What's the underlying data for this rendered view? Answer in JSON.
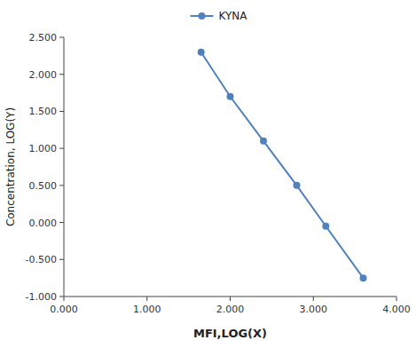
{
  "chart_data": {
    "type": "line",
    "xlabel": "MFI,LOG(X)",
    "ylabel": "Concentration, LOG(Y)",
    "x": [
      1.65,
      2.0,
      2.4,
      2.8,
      3.15,
      3.6
    ],
    "series": [
      {
        "name": "KYNA",
        "color": "#4f81bd",
        "marker": "circle",
        "line_style": "solid",
        "values": [
          2.3,
          1.7,
          1.1,
          0.5,
          -0.05,
          -0.75
        ]
      }
    ],
    "xlim": [
      0.0,
      4.0
    ],
    "ylim": [
      -1.0,
      2.5
    ],
    "xticks": [
      {
        "value": 0.0,
        "label": "0.000"
      },
      {
        "value": 1.0,
        "label": "1.000"
      },
      {
        "value": 2.0,
        "label": "2.000"
      },
      {
        "value": 3.0,
        "label": "3.000"
      },
      {
        "value": 4.0,
        "label": "4.000"
      }
    ],
    "yticks": [
      {
        "value": -1.0,
        "label": "-1.000"
      },
      {
        "value": -0.5,
        "label": "-0.500"
      },
      {
        "value": 0.0,
        "label": "0.000"
      },
      {
        "value": 0.5,
        "label": "0.500"
      },
      {
        "value": 1.0,
        "label": "1.000"
      },
      {
        "value": 1.5,
        "label": "1.500"
      },
      {
        "value": 2.0,
        "label": "2.000"
      },
      {
        "value": 2.5,
        "label": "2.500"
      }
    ],
    "legend": "top",
    "grid": false
  }
}
